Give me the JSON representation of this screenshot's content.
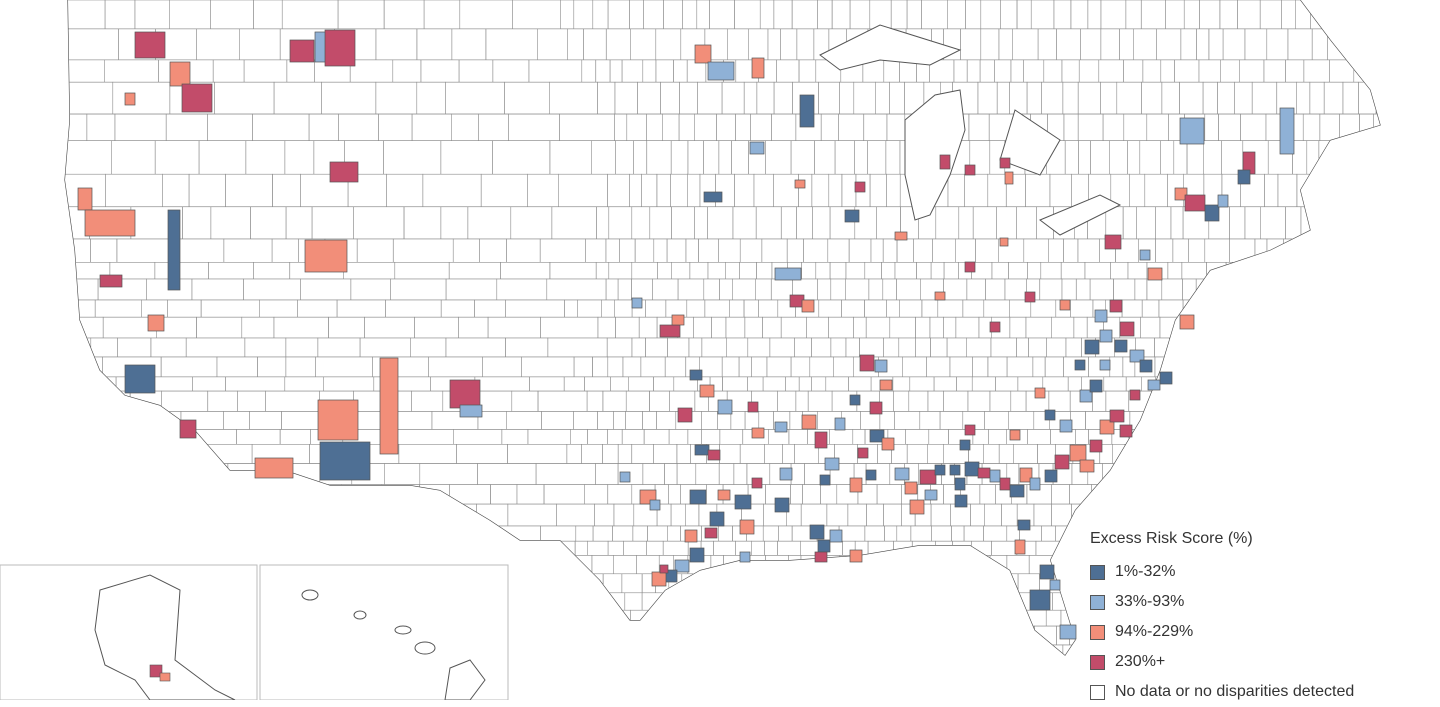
{
  "legend": {
    "title": "Excess Risk Score (%)",
    "items": [
      {
        "label": "1%-32%",
        "color": "#4e6f94"
      },
      {
        "label": "33%-93%",
        "color": "#8fb1d6"
      },
      {
        "label": "94%-229%",
        "color": "#f28e79"
      },
      {
        "label": "230%+",
        "color": "#c24c6a"
      },
      {
        "label": "No data or no disparities detected",
        "color": "#ffffff"
      }
    ]
  },
  "map": {
    "region": "United States counties",
    "insets": [
      "Alaska",
      "Hawaii"
    ],
    "border_color": "#8a8a8a",
    "background": "#ffffff"
  }
}
